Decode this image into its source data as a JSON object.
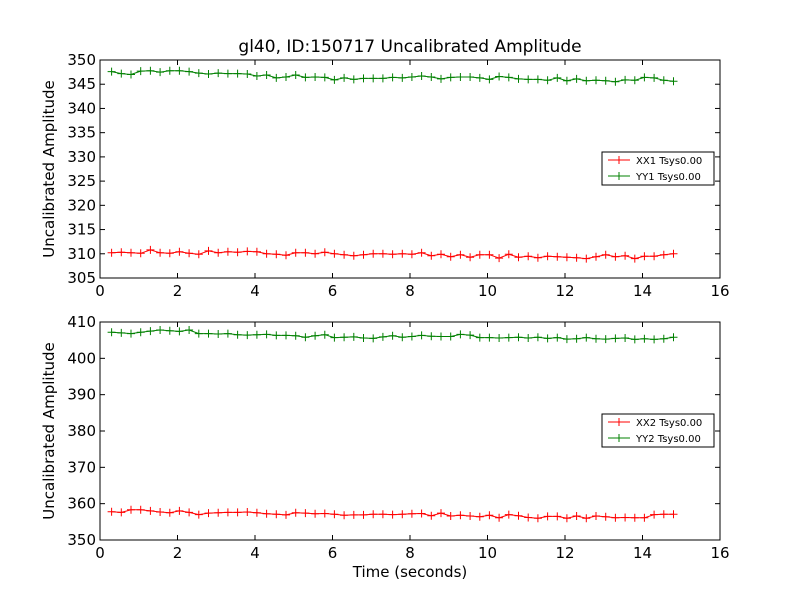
{
  "colors": {
    "red": "#ff0000",
    "green": "#008000",
    "frame": "#000000",
    "background": "#ffffff"
  },
  "chart_data": [
    {
      "type": "line",
      "title": "gl40, ID:150717 Uncalibrated Amplitude",
      "xlabel": "",
      "ylabel": "Uncalibrated Amplitude",
      "xlim": [
        0,
        16
      ],
      "ylim": [
        305,
        350
      ],
      "xticks": [
        "0",
        "2",
        "4",
        "6",
        "8",
        "10",
        "12",
        "14",
        "16"
      ],
      "yticks": [
        "305",
        "310",
        "315",
        "320",
        "325",
        "330",
        "335",
        "340",
        "345",
        "350"
      ],
      "grid": false,
      "legend_position": "center-right",
      "marker": "plus",
      "x": [
        0.3,
        0.55,
        0.8,
        1.05,
        1.3,
        1.55,
        1.8,
        2.05,
        2.3,
        2.55,
        2.8,
        3.05,
        3.3,
        3.55,
        3.8,
        4.05,
        4.3,
        4.55,
        4.8,
        5.05,
        5.3,
        5.55,
        5.8,
        6.05,
        6.3,
        6.55,
        6.8,
        7.05,
        7.3,
        7.55,
        7.8,
        8.05,
        8.3,
        8.55,
        8.8,
        9.05,
        9.3,
        9.55,
        9.8,
        10.05,
        10.3,
        10.55,
        10.8,
        11.05,
        11.3,
        11.55,
        11.8,
        12.05,
        12.3,
        12.55,
        12.8,
        13.05,
        13.3,
        13.55,
        13.8,
        14.05,
        14.3,
        14.55,
        14.8
      ],
      "series": [
        {
          "name": "XX1 Tsys0.00",
          "color": "#ff0000",
          "values": [
            310.2,
            310.3,
            310.2,
            310.1,
            310.8,
            310.2,
            310.1,
            310.4,
            310.1,
            309.9,
            310.6,
            310.2,
            310.4,
            310.3,
            310.5,
            310.4,
            310.0,
            309.9,
            309.7,
            310.2,
            310.2,
            310.0,
            310.3,
            310.0,
            309.8,
            309.6,
            309.8,
            310.0,
            310.0,
            309.9,
            310.0,
            309.9,
            310.2,
            309.6,
            309.9,
            309.4,
            309.8,
            309.3,
            309.8,
            309.8,
            309.1,
            309.9,
            309.3,
            309.5,
            309.2,
            309.5,
            309.4,
            309.3,
            309.2,
            309.0,
            309.4,
            309.8,
            309.4,
            309.6,
            309.0,
            309.5,
            309.5,
            309.8,
            310.0
          ]
        },
        {
          "name": "YY1 Tsys0.00",
          "color": "#008000",
          "values": [
            347.6,
            347.2,
            347.0,
            347.7,
            347.8,
            347.5,
            347.8,
            347.8,
            347.6,
            347.3,
            347.1,
            347.3,
            347.2,
            347.2,
            347.1,
            346.7,
            346.9,
            346.3,
            346.5,
            346.9,
            346.4,
            346.5,
            346.4,
            345.9,
            346.3,
            346.0,
            346.2,
            346.2,
            346.2,
            346.4,
            346.3,
            346.5,
            346.7,
            346.5,
            346.1,
            346.4,
            346.5,
            346.5,
            346.3,
            346.0,
            346.6,
            346.4,
            346.1,
            346.0,
            346.0,
            345.8,
            346.3,
            345.7,
            346.1,
            345.7,
            345.8,
            345.7,
            345.5,
            345.9,
            345.8,
            346.4,
            346.3,
            345.8,
            345.6
          ]
        }
      ]
    },
    {
      "type": "line",
      "title": "",
      "xlabel": "Time (seconds)",
      "ylabel": "Uncalibrated Amplitude",
      "xlim": [
        0,
        16
      ],
      "ylim": [
        350,
        410
      ],
      "xticks": [
        "0",
        "2",
        "4",
        "6",
        "8",
        "10",
        "12",
        "14",
        "16"
      ],
      "yticks": [
        "350",
        "360",
        "370",
        "380",
        "390",
        "400",
        "410"
      ],
      "grid": false,
      "legend_position": "center-right",
      "marker": "plus",
      "x": [
        0.3,
        0.55,
        0.8,
        1.05,
        1.3,
        1.55,
        1.8,
        2.05,
        2.3,
        2.55,
        2.8,
        3.05,
        3.3,
        3.55,
        3.8,
        4.05,
        4.3,
        4.55,
        4.8,
        5.05,
        5.3,
        5.55,
        5.8,
        6.05,
        6.3,
        6.55,
        6.8,
        7.05,
        7.3,
        7.55,
        7.8,
        8.05,
        8.3,
        8.55,
        8.8,
        9.05,
        9.3,
        9.55,
        9.8,
        10.05,
        10.3,
        10.55,
        10.8,
        11.05,
        11.3,
        11.55,
        11.8,
        12.05,
        12.3,
        12.55,
        12.8,
        13.05,
        13.3,
        13.55,
        13.8,
        14.05,
        14.3,
        14.55,
        14.8
      ],
      "series": [
        {
          "name": "XX2 Tsys0.00",
          "color": "#ff0000",
          "values": [
            357.8,
            357.6,
            358.3,
            358.3,
            358.0,
            357.7,
            357.5,
            358.0,
            357.6,
            357.0,
            357.4,
            357.5,
            357.6,
            357.6,
            357.7,
            357.5,
            357.2,
            357.1,
            356.9,
            357.5,
            357.4,
            357.2,
            357.3,
            357.1,
            356.8,
            356.9,
            356.9,
            357.1,
            357.1,
            357.0,
            357.1,
            357.2,
            357.3,
            356.7,
            357.4,
            356.6,
            356.8,
            356.6,
            356.4,
            356.8,
            356.1,
            357.0,
            356.7,
            356.2,
            356.0,
            356.5,
            356.5,
            356.0,
            356.6,
            356.0,
            356.6,
            356.4,
            356.1,
            356.2,
            356.1,
            356.1,
            357.0,
            357.1,
            357.1
          ]
        },
        {
          "name": "YY2 Tsys0.00",
          "color": "#008000",
          "values": [
            407.2,
            407.0,
            406.8,
            407.2,
            407.5,
            407.8,
            407.6,
            407.4,
            407.8,
            406.8,
            406.8,
            406.7,
            406.8,
            406.5,
            406.4,
            406.5,
            406.6,
            406.3,
            406.3,
            406.2,
            405.8,
            406.2,
            406.5,
            405.7,
            405.8,
            405.9,
            405.6,
            405.5,
            405.9,
            406.2,
            405.8,
            406.0,
            406.3,
            406.1,
            406.0,
            406.0,
            406.6,
            406.4,
            405.7,
            405.7,
            405.6,
            405.7,
            405.8,
            405.6,
            405.8,
            405.5,
            405.7,
            405.3,
            405.4,
            405.7,
            405.4,
            405.3,
            405.5,
            405.6,
            405.2,
            405.4,
            405.2,
            405.4,
            405.8
          ]
        }
      ]
    }
  ]
}
